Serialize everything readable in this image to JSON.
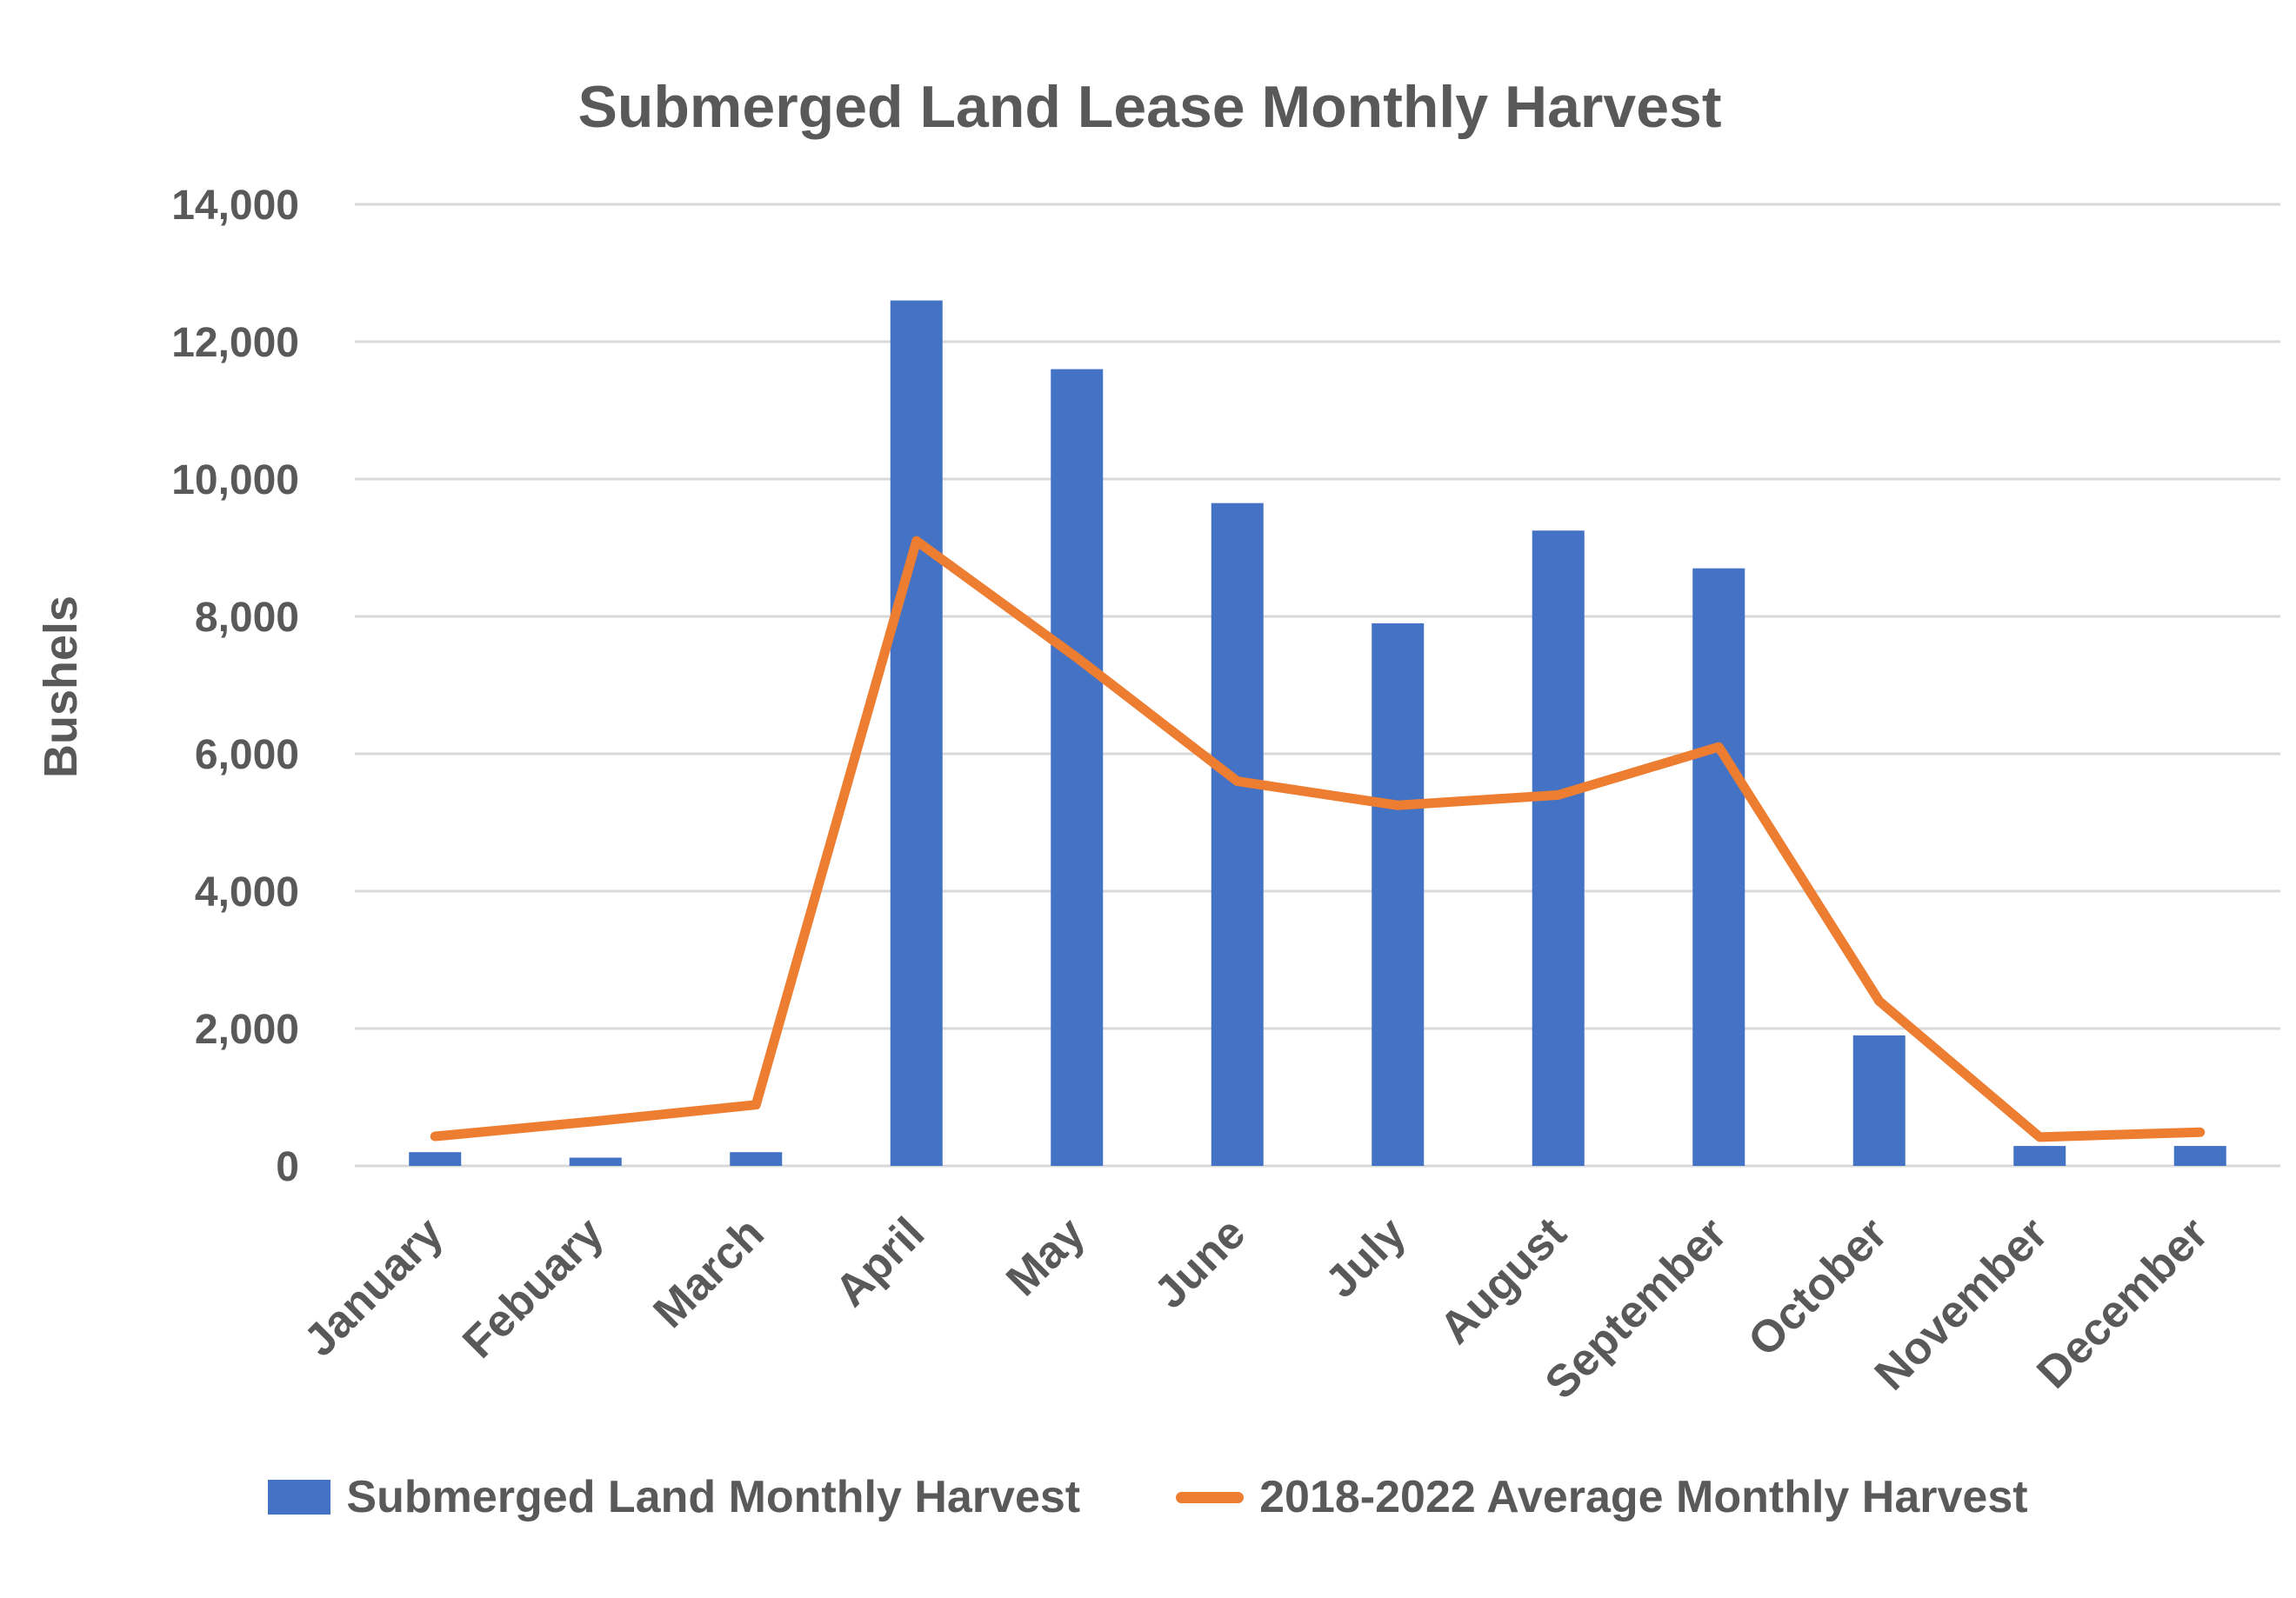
{
  "chart_data": {
    "type": "bar+line",
    "title": "Submerged Land Lease Monthly Harvest",
    "xlabel": "",
    "ylabel": "Bushels",
    "ylim": [
      0,
      14000
    ],
    "ytick_step": 2000,
    "grid": true,
    "legend_position": "bottom",
    "categories": [
      "January",
      "Febuary",
      "March",
      "April",
      "May",
      "June",
      "July",
      "August",
      "September",
      "October",
      "November",
      "December"
    ],
    "series": [
      {
        "name": "Submerged Land Monthly Harvest",
        "type": "bar",
        "color": "#4472C4",
        "values": [
          200,
          120,
          200,
          12600,
          11600,
          9650,
          7900,
          9250,
          8700,
          1900,
          290,
          290
        ]
      },
      {
        "name": "2018-2022 Average Monthly Harvest",
        "type": "line",
        "color": "#ED7D31",
        "values": [
          430,
          650,
          890,
          9100,
          7400,
          5600,
          5250,
          5400,
          6100,
          2400,
          420,
          490
        ]
      }
    ],
    "colors": {
      "bar": "#4472C4",
      "line": "#ED7D31",
      "text": "#595959",
      "gridline": "#D9D9D9",
      "background": "#FFFFFF"
    }
  }
}
